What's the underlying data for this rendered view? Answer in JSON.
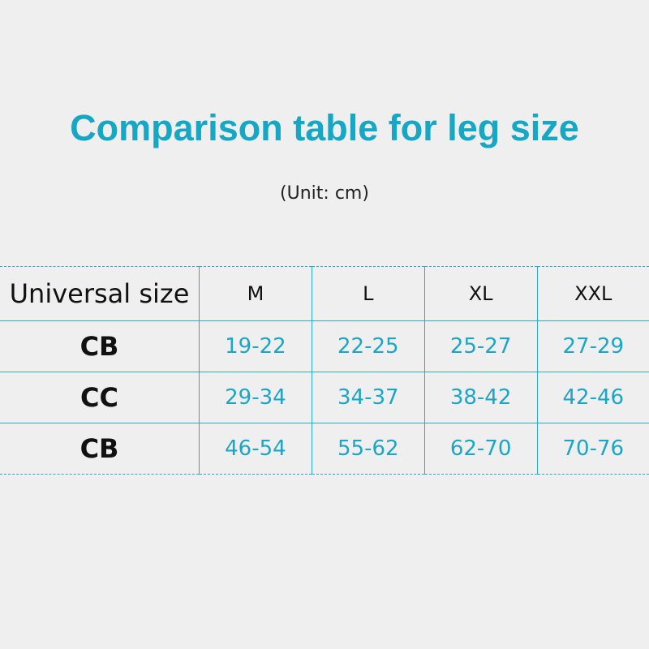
{
  "title": "Comparison table for leg size",
  "unit": "(Unit: cm)",
  "table": {
    "header": [
      "Universal size",
      "M",
      "L",
      "XL",
      "XXL"
    ],
    "rows": [
      {
        "label": "CB",
        "values": [
          "19-22",
          "22-25",
          "25-27",
          "27-29"
        ]
      },
      {
        "label": "CC",
        "values": [
          "29-34",
          "34-37",
          "38-42",
          "42-46"
        ]
      },
      {
        "label": "CB",
        "values": [
          "46-54",
          "55-62",
          "62-70",
          "70-76"
        ]
      }
    ]
  },
  "colors": {
    "accent": "#16a7c5",
    "background": "#efefef"
  }
}
